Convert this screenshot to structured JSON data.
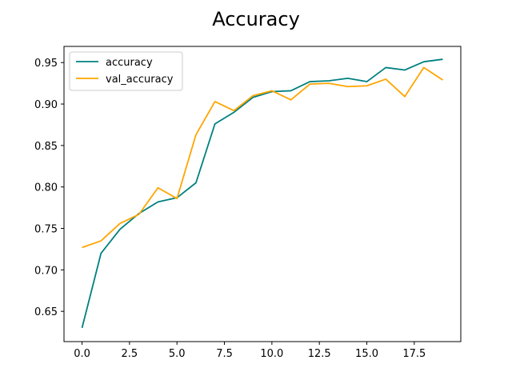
{
  "chart_data": {
    "type": "line",
    "title": "Accuracy",
    "xlabel": "",
    "ylabel": "",
    "x": [
      0,
      1,
      2,
      3,
      4,
      5,
      6,
      7,
      8,
      9,
      10,
      11,
      12,
      13,
      14,
      15,
      16,
      17,
      18,
      19
    ],
    "xlim": [
      -0.95,
      19.95
    ],
    "ylim": [
      0.6135,
      0.9695
    ],
    "xticks": [
      0,
      2.5,
      5,
      7.5,
      10,
      12.5,
      15,
      17.5
    ],
    "xtick_labels": [
      "0.0",
      "2.5",
      "5.0",
      "7.5",
      "10.0",
      "12.5",
      "15.0",
      "17.5"
    ],
    "yticks": [
      0.65,
      0.7,
      0.75,
      0.8,
      0.85,
      0.9,
      0.95
    ],
    "ytick_labels": [
      "0.65",
      "0.70",
      "0.75",
      "0.80",
      "0.85",
      "0.90",
      "0.95"
    ],
    "grid": false,
    "legend_position": "top-left",
    "series": [
      {
        "name": "accuracy",
        "color": "#008080",
        "values": [
          0.63,
          0.72,
          0.749,
          0.768,
          0.782,
          0.787,
          0.805,
          0.876,
          0.89,
          0.908,
          0.915,
          0.916,
          0.927,
          0.928,
          0.931,
          0.927,
          0.944,
          0.941,
          0.951,
          0.954
        ]
      },
      {
        "name": "val_accuracy",
        "color": "#FFA500",
        "values": [
          0.727,
          0.735,
          0.756,
          0.767,
          0.799,
          0.786,
          0.863,
          0.903,
          0.892,
          0.91,
          0.916,
          0.905,
          0.924,
          0.925,
          0.921,
          0.922,
          0.93,
          0.909,
          0.944,
          0.929
        ]
      }
    ]
  }
}
